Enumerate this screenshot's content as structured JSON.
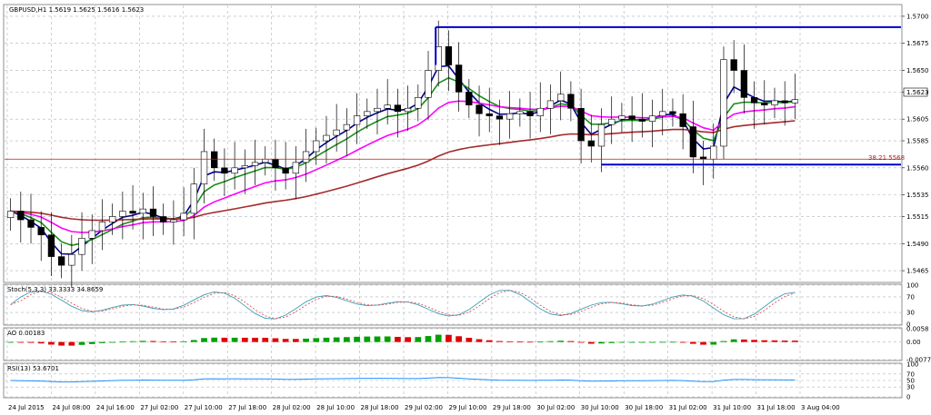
{
  "chart_data": [
    {
      "type": "candlestick",
      "title": "GBPUSD,H1  1.5619 1.5625 1.5616 1.5623",
      "price_axis": {
        "range": [
          1.5455,
          1.571
        ],
        "ticks": [
          "1.5700",
          "1.5675",
          "1.5650",
          "1.5630",
          "1.5605",
          "1.5585",
          "1.5560",
          "1.5535",
          "1.5515",
          "1.5490",
          "1.5465"
        ]
      },
      "current_price": "1.5623",
      "fib_label": "38.21 5568",
      "levels": {
        "resistance": 1.569,
        "support": 1.5563,
        "fib": 1.5568
      },
      "time_axis": [
        "24 Jul 2015",
        "24 Jul 08:00",
        "24 Jul 16:00",
        "27 Jul 02:00",
        "27 Jul 10:00",
        "27 Jul 18:00",
        "28 Jul 02:00",
        "28 Jul 10:00",
        "28 Jul 18:00",
        "29 Jul 02:00",
        "29 Jul 10:00",
        "29 Jul 18:00",
        "30 Jul 02:00",
        "30 Jul 10:00",
        "30 Jul 18:00",
        "31 Jul 02:00",
        "31 Jul 10:00",
        "31 Jul 18:00",
        "3 Aug 04:00"
      ],
      "closes": [
        1.552,
        1.5512,
        1.5505,
        1.5498,
        1.5478,
        1.547,
        1.548,
        1.5495,
        1.5502,
        1.551,
        1.5515,
        1.552,
        1.5518,
        1.5522,
        1.5515,
        1.551,
        1.5512,
        1.5518,
        1.5545,
        1.5575,
        1.556,
        1.5555,
        1.556,
        1.5562,
        1.5565,
        1.5568,
        1.556,
        1.5555,
        1.5565,
        1.5575,
        1.5585,
        1.559,
        1.5595,
        1.56,
        1.5608,
        1.5612,
        1.5615,
        1.5618,
        1.5612,
        1.5615,
        1.5625,
        1.565,
        1.5672,
        1.5655,
        1.563,
        1.5618,
        1.561,
        1.5608,
        1.5605,
        1.561,
        1.5612,
        1.5608,
        1.5615,
        1.5622,
        1.5628,
        1.5615,
        1.5585,
        1.558,
        1.56,
        1.5605,
        1.5608,
        1.5605,
        1.5603,
        1.5608,
        1.5612,
        1.561,
        1.5598,
        1.557,
        1.5568,
        1.558,
        1.566,
        1.565,
        1.5625,
        1.562,
        1.5618,
        1.5622,
        1.562,
        1.5623
      ],
      "colors": {
        "ema_fast": "#00008b",
        "ema_mid": "#1a8c1a",
        "ema_slow": "#ff00ff",
        "ma_long": "#a52a2a",
        "level_line": "#0000cd",
        "fib_line": "#b22222"
      }
    },
    {
      "type": "line",
      "title": "Stoch(5,3,3) 33.3333 34.8659",
      "ylim": [
        0,
        100
      ],
      "y_ticks": [
        "100",
        "70",
        "30",
        "0"
      ],
      "colors": {
        "main": "#3aa0b8",
        "signal": "#e05050"
      }
    },
    {
      "type": "histogram",
      "title": "AO 0.00183",
      "ylim": [
        -0.0077,
        0.0058
      ],
      "y_ticks": [
        "0.0058",
        "0.00",
        "-0.0077"
      ],
      "colors": {
        "up": "#00a000",
        "down": "#e00000"
      }
    },
    {
      "type": "line",
      "title": "RSI(13) 53.6701",
      "ylim": [
        0,
        100
      ],
      "y_ticks": [
        "100",
        "70",
        "50",
        "30",
        "0"
      ],
      "colors": {
        "line": "#1e90ff"
      }
    }
  ]
}
